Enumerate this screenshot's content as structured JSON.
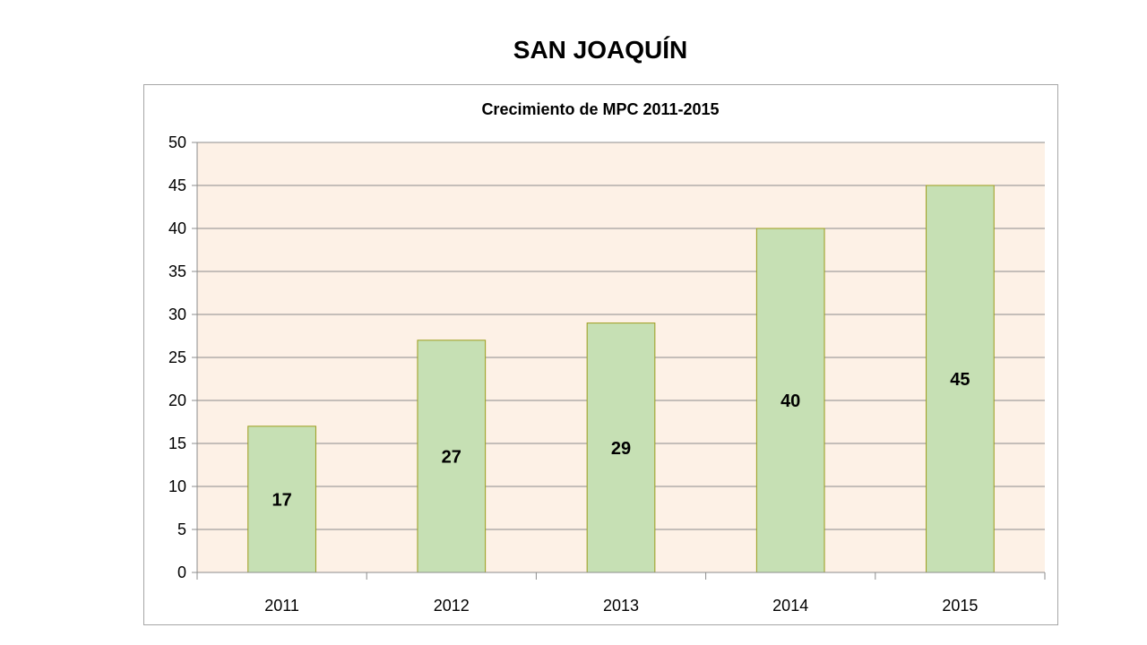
{
  "page_title": "SAN JOAQUÍN",
  "chart_data": {
    "type": "bar",
    "title": "Crecimiento de MPC 2011-2015",
    "categories": [
      "2011",
      "2012",
      "2013",
      "2014",
      "2015"
    ],
    "values": [
      17,
      27,
      29,
      40,
      45
    ],
    "xlabel": "",
    "ylabel": "",
    "ylim": [
      0,
      50
    ],
    "yticks": [
      0,
      5,
      10,
      15,
      20,
      25,
      30,
      35,
      40,
      45,
      50
    ],
    "grid": true,
    "legend": "none",
    "colors": {
      "bar_fill": "#c6e0b4",
      "bar_stroke": "#9c9c1c",
      "plot_background": "#fdf1e6",
      "gridline": "#8c8c8c"
    }
  }
}
